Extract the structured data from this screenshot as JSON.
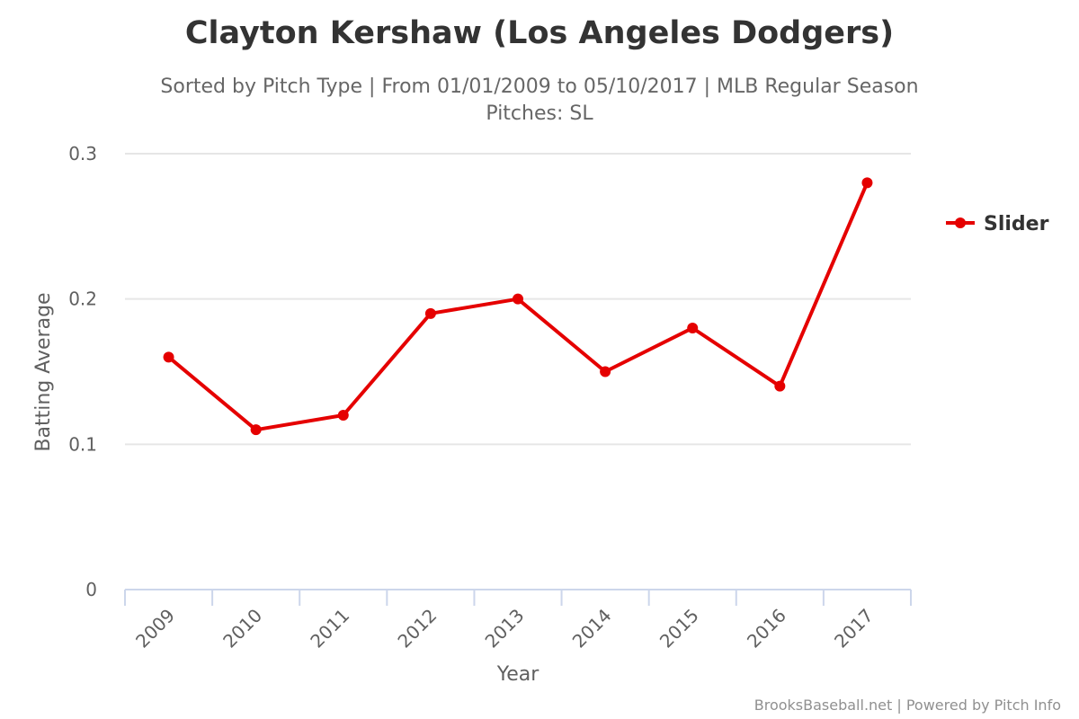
{
  "chart_data": {
    "type": "line",
    "title": "Clayton Kershaw (Los Angeles Dodgers)",
    "subtitle_line1": "Sorted by Pitch Type | From 01/01/2009 to 05/10/2017 | MLB Regular Season",
    "subtitle_line2": "Pitches: SL",
    "xlabel": "Year",
    "ylabel": "Batting Average",
    "categories": [
      "2009",
      "2010",
      "2011",
      "2012",
      "2013",
      "2014",
      "2015",
      "2016",
      "2017"
    ],
    "series": [
      {
        "name": "Slider",
        "color": "#e50000",
        "values": [
          0.16,
          0.11,
          0.12,
          0.19,
          0.2,
          0.15,
          0.18,
          0.14,
          0.28
        ]
      }
    ],
    "ylim": [
      0,
      0.3
    ],
    "yticks": [
      "0",
      "0.1",
      "0.2",
      "0.3"
    ],
    "ytick_values": [
      0,
      0.1,
      0.2,
      0.3
    ],
    "grid": true,
    "legend_position": "right",
    "credits": "BrooksBaseball.net | Powered by Pitch Info"
  }
}
